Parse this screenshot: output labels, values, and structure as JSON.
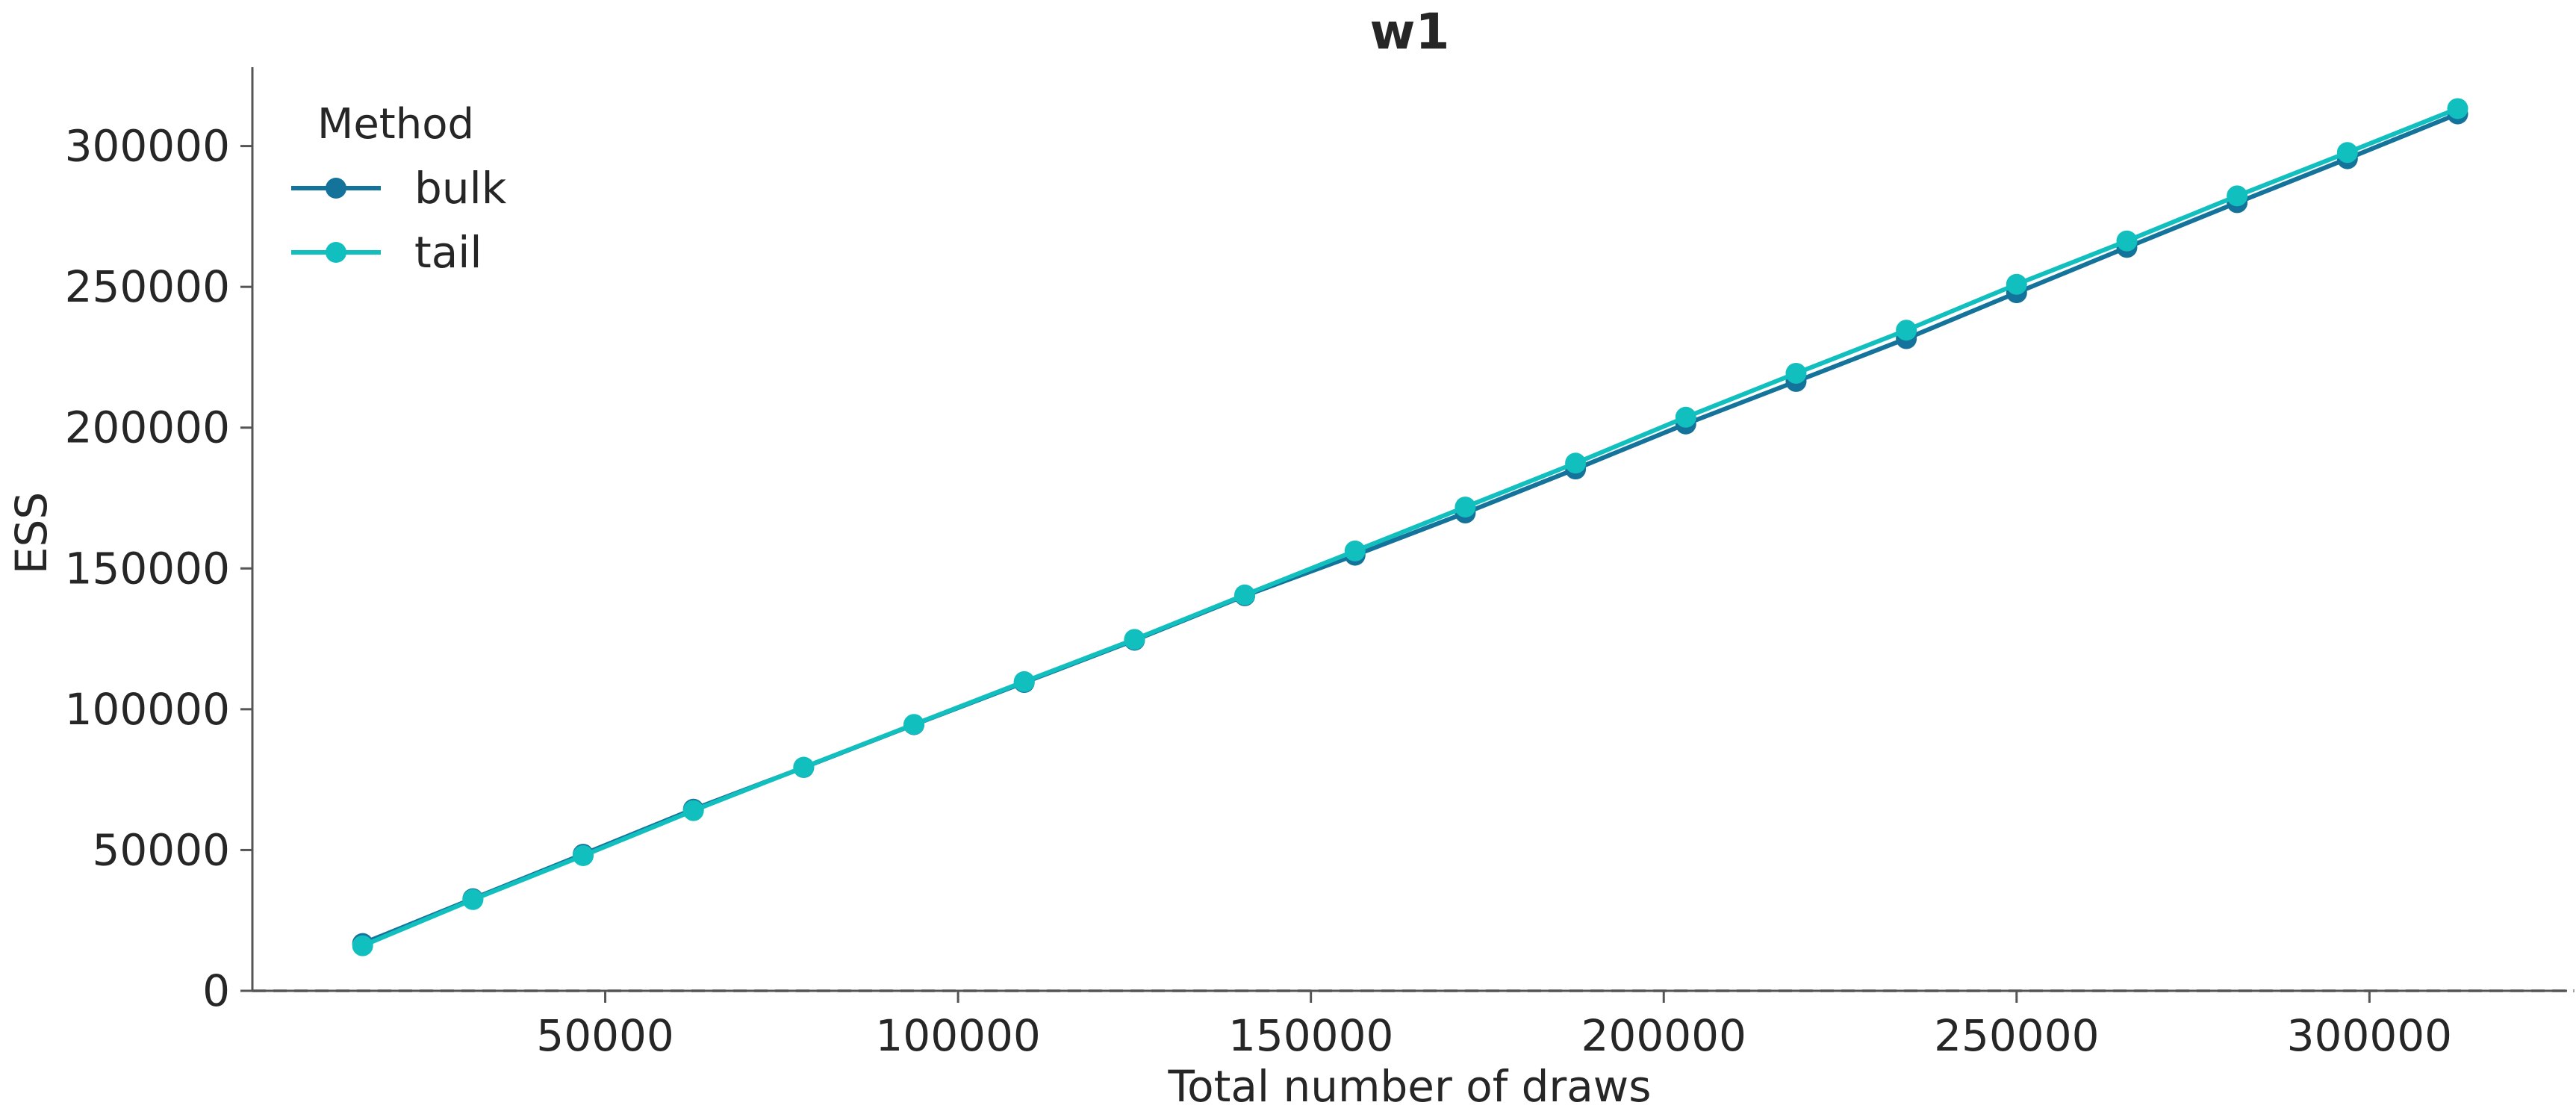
{
  "chart_data": {
    "type": "line",
    "title": "w1",
    "xlabel": "Total number of draws",
    "ylabel": "ESS",
    "xlim": [
      0,
      328000
    ],
    "ylim": [
      0,
      328000
    ],
    "xticks": [
      50000,
      100000,
      150000,
      200000,
      250000,
      300000
    ],
    "yticks": [
      0,
      50000,
      100000,
      150000,
      200000,
      250000,
      300000
    ],
    "x": [
      15625,
      31250,
      46875,
      62500,
      78125,
      93750,
      109375,
      125000,
      140625,
      156250,
      171875,
      187500,
      203125,
      218750,
      234375,
      250000,
      265625,
      281250,
      296875,
      312500
    ],
    "legend": {
      "title": "Method",
      "placement": "top-left"
    },
    "reference_line": {
      "y": 0,
      "style": "dashed",
      "color": "#a0a0a0"
    },
    "series": [
      {
        "name": "bulk",
        "color": "#13739b",
        "values": [
          16800,
          32700,
          48500,
          64500,
          79300,
          94500,
          109500,
          124500,
          140300,
          154700,
          169700,
          185300,
          201300,
          216400,
          231600,
          247900,
          264000,
          279900,
          295500,
          311400
        ]
      },
      {
        "name": "tail",
        "color": "#11bfbf",
        "values": [
          16000,
          32400,
          48000,
          64000,
          79400,
          94600,
          109800,
          124800,
          140600,
          156200,
          171800,
          187400,
          203700,
          219300,
          234600,
          250900,
          266300,
          282300,
          297700,
          313300
        ]
      }
    ]
  }
}
